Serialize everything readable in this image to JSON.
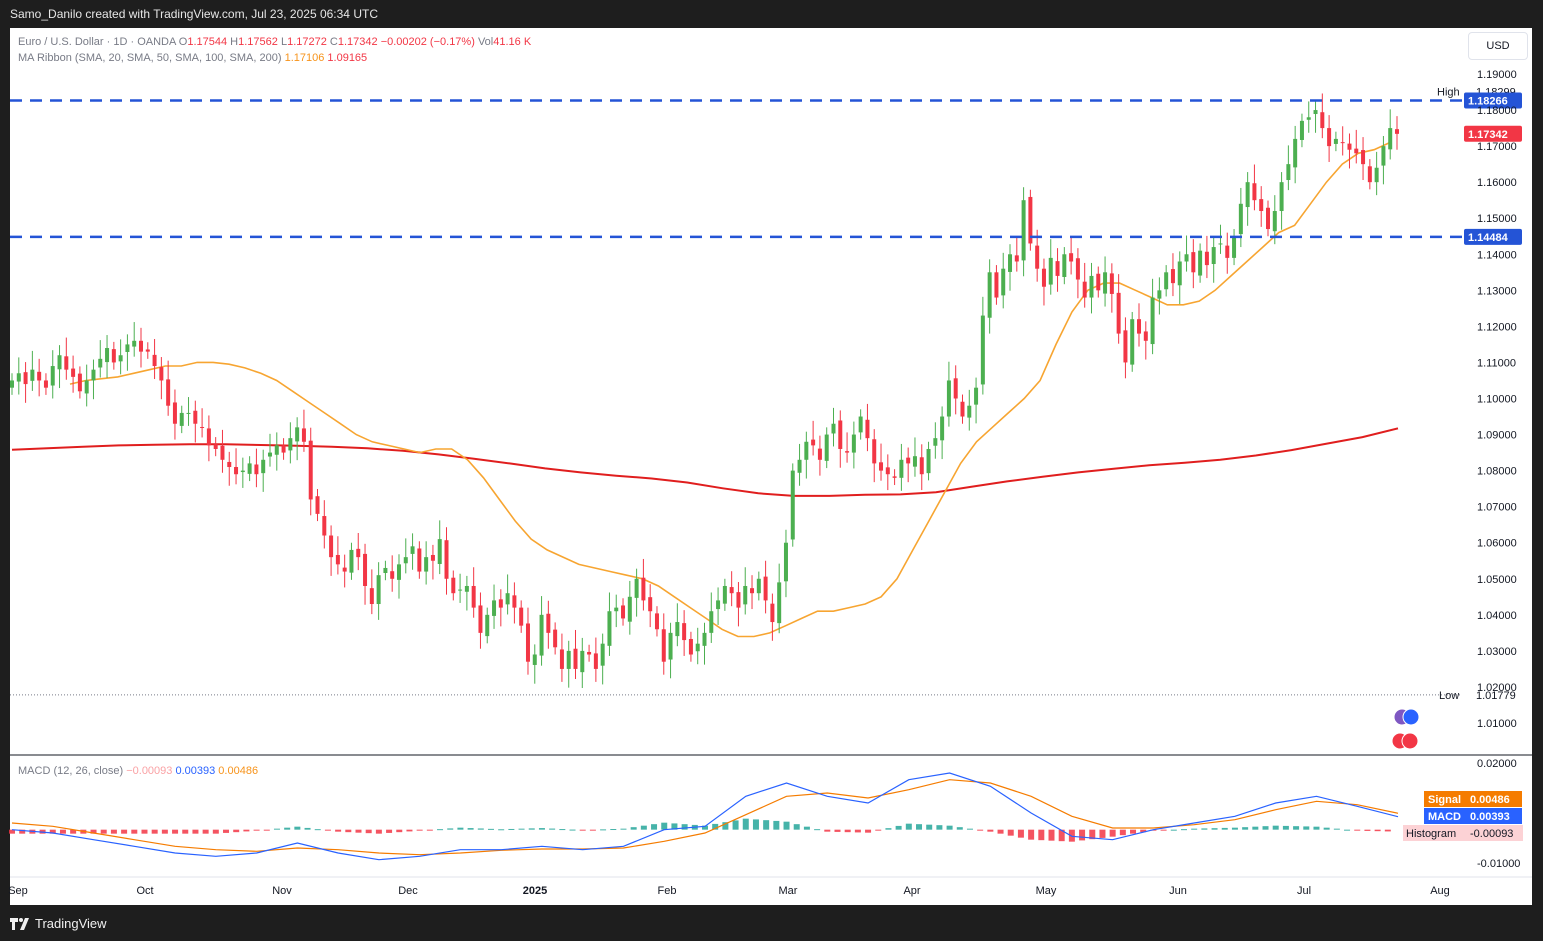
{
  "header": {
    "title": "Samo_Danilo created with TradingView.com, Jul 23, 2025 06:34 UTC"
  },
  "legend": {
    "symbol": "Euro / U.S. Dollar · 1D · OANDA",
    "o_label": "O",
    "o": "1.17544",
    "h_label": "H",
    "h": "1.17562",
    "l_label": "L",
    "l": "1.17272",
    "c_label": "C",
    "c": "1.17342",
    "change": "−0.00202 (−0.17%)",
    "vol_label": "Vol",
    "vol": "41.16 K",
    "ma_label": "MA Ribbon (SMA, 20, SMA, 50, SMA, 100, SMA, 200)",
    "ma1": "1.17106",
    "ma2": "1.09165"
  },
  "currency_button": "USD",
  "price_axis": {
    "ticks": [
      "1.19000",
      "1.18000",
      "1.17000",
      "1.16000",
      "1.15000",
      "1.14000",
      "1.13000",
      "1.12000",
      "1.11000",
      "1.10000",
      "1.09000",
      "1.08000",
      "1.07000",
      "1.06000",
      "1.05000",
      "1.04000",
      "1.03000",
      "1.02000",
      "1.01000"
    ],
    "high_label": "High",
    "high": "1.18299",
    "low_label": "Low",
    "low": "1.01779",
    "line1": "1.18266",
    "line2": "1.14484",
    "last": "1.17342"
  },
  "macd": {
    "label": "MACD (12, 26, close)",
    "hist": "−0.00093",
    "macd": "0.00393",
    "signal": "0.00486",
    "ticks": [
      "0.02000",
      "-0.01000"
    ],
    "signal_label": "Signal",
    "macd_label": "MACD",
    "hist_label": "Histogram",
    "signal_value": "0.00486",
    "macd_value": "0.00393",
    "hist_value": "-0.00093"
  },
  "time_axis": {
    "labels": [
      "Sep",
      "Oct",
      "Nov",
      "Dec",
      "2025",
      "Feb",
      "Mar",
      "Apr",
      "May",
      "Jun",
      "Jul",
      "Aug"
    ]
  },
  "footer": {
    "brand": "TradingView"
  },
  "colors": {
    "up": "#26a69a",
    "up_candle": "#4caf50",
    "down": "#f23645",
    "sma20": "#f7a531",
    "sma200": "#e01e1e",
    "level": "#2454d6",
    "macd": "#2962ff",
    "signal": "#f57c00"
  },
  "chart_data": {
    "type": "candlestick",
    "title": "Euro / U.S. Dollar · 1D · OANDA",
    "ylim": [
      1.012,
      1.192
    ],
    "horizontal_levels": [
      1.18266,
      1.14484
    ],
    "x_labels": [
      "Sep",
      "Oct",
      "Nov",
      "Dec",
      "2025",
      "Feb",
      "Mar",
      "Apr",
      "May",
      "Jun",
      "Jul",
      "Aug"
    ],
    "close": [
      1.105,
      1.107,
      1.104,
      1.108,
      1.105,
      1.103,
      1.109,
      1.112,
      1.108,
      1.106,
      1.102,
      1.105,
      1.108,
      1.111,
      1.114,
      1.11,
      1.112,
      1.115,
      1.116,
      1.113,
      1.113,
      1.109,
      1.105,
      1.098,
      1.093,
      1.096,
      1.096,
      1.093,
      1.092,
      1.087,
      1.086,
      1.083,
      1.081,
      1.079,
      1.08,
      1.082,
      1.079,
      1.083,
      1.085,
      1.087,
      1.085,
      1.089,
      1.092,
      1.088,
      1.072,
      1.068,
      1.062,
      1.056,
      1.054,
      1.052,
      1.058,
      1.056,
      1.048,
      1.043,
      1.051,
      1.053,
      1.05,
      1.054,
      1.056,
      1.059,
      1.052,
      1.056,
      1.055,
      1.061,
      1.05,
      1.046,
      1.047,
      1.048,
      1.042,
      1.035,
      1.04,
      1.044,
      1.042,
      1.046,
      1.042,
      1.037,
      1.027,
      1.029,
      1.04,
      1.035,
      1.031,
      1.025,
      1.03,
      1.025,
      1.03,
      1.029,
      1.025,
      1.032,
      1.041,
      1.042,
      1.039,
      1.045,
      1.05,
      1.044,
      1.041,
      1.036,
      1.027,
      1.035,
      1.038,
      1.033,
      1.029,
      1.032,
      1.035,
      1.041,
      1.044,
      1.048,
      1.046,
      1.042,
      1.048,
      1.046,
      1.05,
      1.044,
      1.038,
      1.049,
      1.06,
      1.08,
      1.083,
      1.088,
      1.087,
      1.083,
      1.09,
      1.093,
      1.086,
      1.085,
      1.09,
      1.095,
      1.089,
      1.082,
      1.08,
      1.079,
      1.078,
      1.083,
      1.082,
      1.084,
      1.079,
      1.086,
      1.089,
      1.095,
      1.105,
      1.1,
      1.095,
      1.098,
      1.103,
      1.123,
      1.135,
      1.128,
      1.136,
      1.14,
      1.138,
      1.155,
      1.143,
      1.136,
      1.131,
      1.139,
      1.134,
      1.14,
      1.138,
      1.133,
      1.128,
      1.134,
      1.13,
      1.135,
      1.129,
      1.118,
      1.11,
      1.122,
      1.118,
      1.116,
      1.128,
      1.13,
      1.135,
      1.132,
      1.138,
      1.14,
      1.135,
      1.141,
      1.137,
      1.142,
      1.143,
      1.139,
      1.145,
      1.154,
      1.16,
      1.155,
      1.152,
      1.147,
      1.152,
      1.16,
      1.165,
      1.172,
      1.177,
      1.178,
      1.18,
      1.175,
      1.17,
      1.172,
      1.171,
      1.169,
      1.168,
      1.165,
      1.16,
      1.164,
      1.17,
      1.175,
      1.1734
    ],
    "sma20": [
      1.104,
      1.105,
      1.1055,
      1.106,
      1.107,
      1.108,
      1.109,
      1.109,
      1.11,
      1.11,
      1.1095,
      1.1085,
      1.107,
      1.105,
      1.102,
      1.099,
      1.096,
      1.093,
      1.09,
      1.088,
      1.087,
      1.086,
      1.085,
      1.086,
      1.086,
      1.083,
      1.078,
      1.072,
      1.066,
      1.061,
      1.058,
      1.056,
      1.054,
      1.053,
      1.052,
      1.051,
      1.05,
      1.048,
      1.045,
      1.042,
      1.039,
      1.036,
      1.034,
      1.034,
      1.035,
      1.037,
      1.039,
      1.041,
      1.041,
      1.042,
      1.043,
      1.045,
      1.05,
      1.058,
      1.066,
      1.074,
      1.082,
      1.088,
      1.092,
      1.096,
      1.1,
      1.105,
      1.115,
      1.124,
      1.13,
      1.132,
      1.132,
      1.13,
      1.128,
      1.126,
      1.126,
      1.127,
      1.13,
      1.134,
      1.138,
      1.142,
      1.146,
      1.148,
      1.154,
      1.16,
      1.165,
      1.168,
      1.169,
      1.171
    ],
    "sma200": [
      1.0858,
      1.0862,
      1.0866,
      1.087,
      1.0872,
      1.0873,
      1.0873,
      1.0871,
      1.0869,
      1.0866,
      1.0862,
      1.0855,
      1.0845,
      1.0833,
      1.082,
      1.0806,
      1.0795,
      1.0786,
      1.0778,
      1.0767,
      1.0751,
      1.0737,
      1.073,
      1.073,
      1.0733,
      1.0734,
      1.074,
      1.0755,
      1.077,
      1.0783,
      1.0795,
      1.0805,
      1.0815,
      1.0822,
      1.083,
      1.0842,
      1.0857,
      1.0875,
      1.0893,
      1.0917
    ],
    "macd_series": {
      "macd": [
        0.0,
        -0.001,
        -0.003,
        -0.005,
        -0.007,
        -0.008,
        -0.007,
        -0.004,
        -0.007,
        -0.009,
        -0.008,
        -0.006,
        -0.006,
        -0.005,
        -0.006,
        -0.005,
        0.0,
        0.001,
        0.01,
        0.014,
        0.01,
        0.008,
        0.015,
        0.017,
        0.013,
        0.005,
        -0.002,
        -0.003,
        0.0,
        0.002,
        0.004,
        0.008,
        0.01,
        0.007,
        0.0039
      ],
      "signal": [
        0.002,
        0.001,
        -0.001,
        -0.003,
        -0.005,
        -0.006,
        -0.0065,
        -0.0055,
        -0.006,
        -0.007,
        -0.0075,
        -0.007,
        -0.0062,
        -0.0058,
        -0.0058,
        -0.0055,
        -0.0035,
        -0.001,
        0.0045,
        0.01,
        0.011,
        0.0095,
        0.012,
        0.015,
        0.014,
        0.01,
        0.004,
        0.0005,
        0.0005,
        0.0015,
        0.003,
        0.006,
        0.0085,
        0.0075,
        0.0049
      ]
    }
  }
}
